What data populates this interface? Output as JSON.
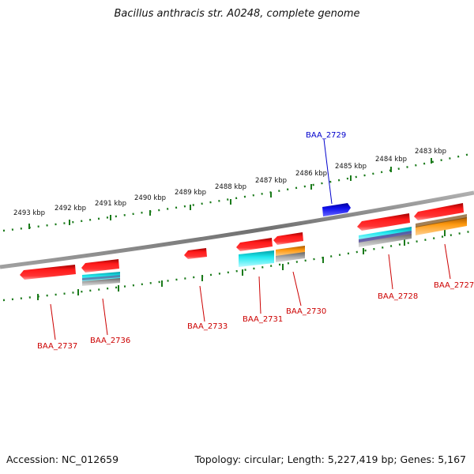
{
  "title": "Bacillus anthracis str. A0248, complete genome",
  "accession": "Accession: NC_012659",
  "summary": "Topology: circular; Length: 5,227,419 bp; Genes: 5,167",
  "ruler": {
    "color": "#1a7a1a",
    "labels": [
      "2493 kbp",
      "2492 kbp",
      "2491 kbp",
      "2490 kbp",
      "2489 kbp",
      "2488 kbp",
      "2487 kbp",
      "2486 kbp",
      "2485 kbp",
      "2484 kbp",
      "2483 kbp"
    ]
  },
  "colors": {
    "plus_strand_label": "#0000cc",
    "minus_strand_label": "#cc0000",
    "gene_red": "#ee1111",
    "gene_blue": "#1111dd",
    "gene_cyan": "#22e0e6",
    "gene_orange": "#ff9900",
    "backbone": "#888888"
  },
  "genes": [
    {
      "label": "BAA_2729",
      "strand": "plus"
    },
    {
      "label": "BAA_2737",
      "strand": "minus"
    },
    {
      "label": "BAA_2736",
      "strand": "minus"
    },
    {
      "label": "BAA_2733",
      "strand": "minus"
    },
    {
      "label": "BAA_2731",
      "strand": "minus"
    },
    {
      "label": "BAA_2730",
      "strand": "minus"
    },
    {
      "label": "BAA_2728",
      "strand": "minus"
    },
    {
      "label": "BAA_2727",
      "strand": "minus"
    }
  ]
}
